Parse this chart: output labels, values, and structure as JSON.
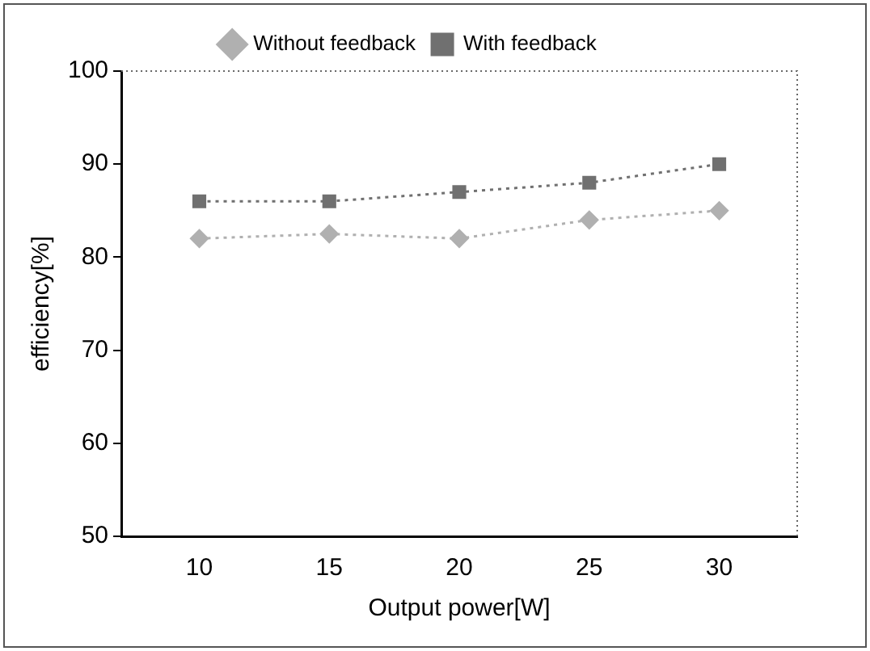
{
  "chart_data": {
    "type": "line",
    "xlabel": "Output power[W]",
    "ylabel": "efficiency[%]",
    "x": [
      10,
      15,
      20,
      25,
      30
    ],
    "xlim": [
      7,
      33
    ],
    "xticks": [
      10,
      15,
      20,
      25,
      30
    ],
    "ylim": [
      50,
      100
    ],
    "yticks": [
      50,
      60,
      70,
      80,
      90,
      100
    ],
    "grid": false,
    "legend": "top",
    "line_style": "dotted",
    "series": [
      {
        "name": "Without feedback",
        "color": "#b0b0b0",
        "marker": "diamond",
        "values": [
          82,
          82.5,
          82,
          84,
          85
        ]
      },
      {
        "name": "With feedback",
        "color": "#707070",
        "marker": "square",
        "values": [
          86,
          86,
          87,
          88,
          90
        ]
      }
    ]
  }
}
